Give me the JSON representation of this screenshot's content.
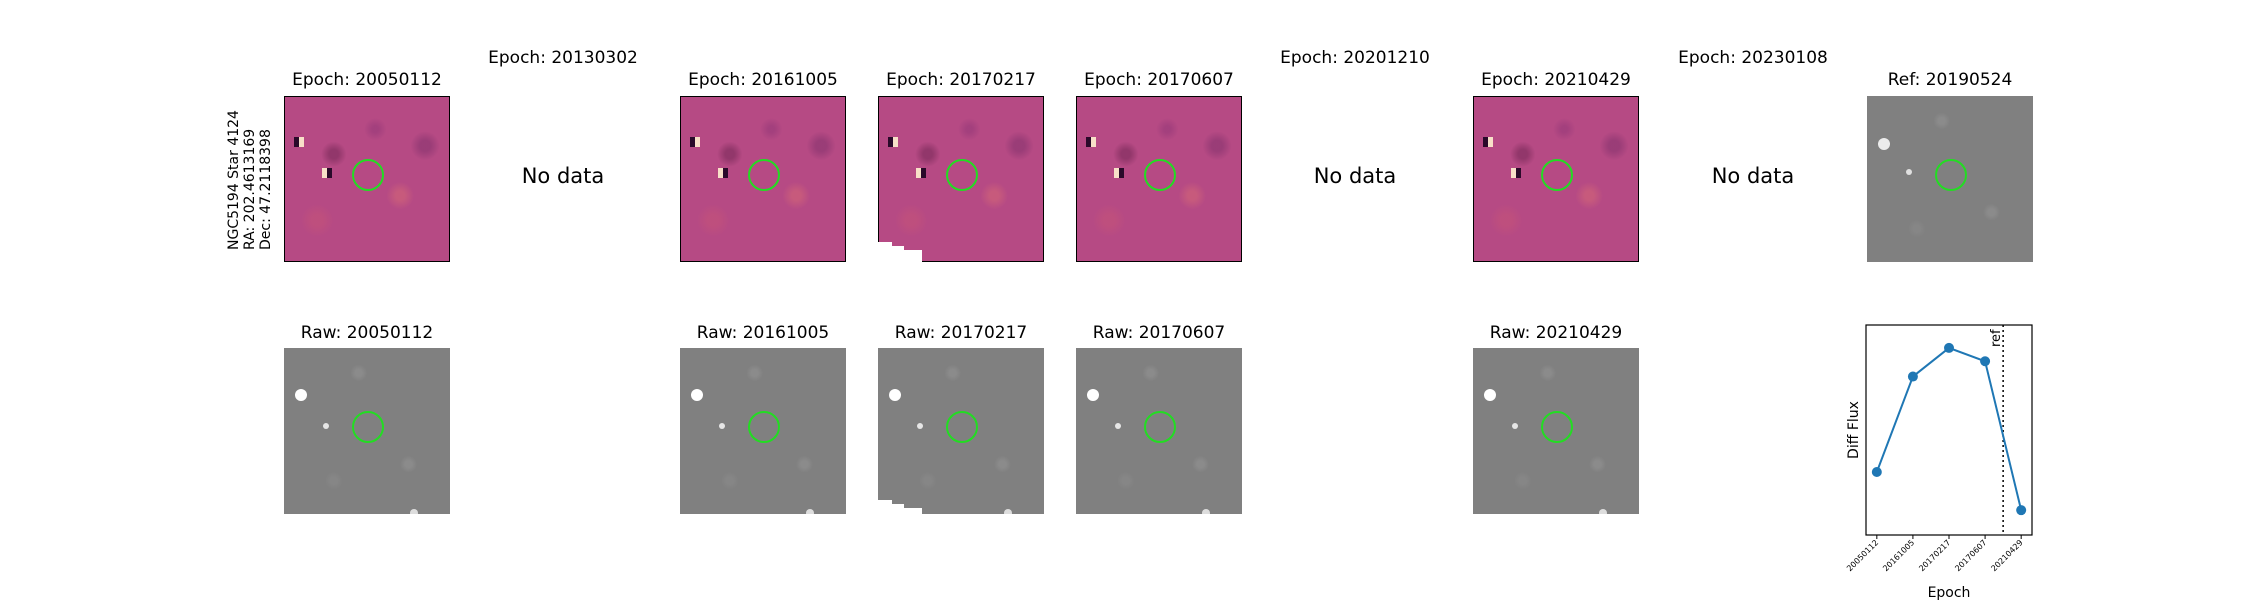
{
  "row_label": [
    "NGC5194 Star 4124",
    "RA: 202.4613169",
    "Dec: 47.2118398"
  ],
  "epochs": [
    {
      "epoch_title": "Epoch: 20050112",
      "raw_title": "Raw: 20050112",
      "has_data": true
    },
    {
      "epoch_title": "Epoch: 20130302",
      "raw_title": "",
      "has_data": false,
      "nodata_text": "No data"
    },
    {
      "epoch_title": "Epoch: 20161005",
      "raw_title": "Raw: 20161005",
      "has_data": true
    },
    {
      "epoch_title": "Epoch: 20170217",
      "raw_title": "Raw: 20170217",
      "has_data": true
    },
    {
      "epoch_title": "Epoch: 20170607",
      "raw_title": "Raw: 20170607",
      "has_data": true
    },
    {
      "epoch_title": "Epoch: 20201210",
      "raw_title": "",
      "has_data": false,
      "nodata_text": "No data"
    },
    {
      "epoch_title": "Epoch: 20210429",
      "raw_title": "Raw: 20210429",
      "has_data": true
    },
    {
      "epoch_title": "Epoch: 20230108",
      "raw_title": "",
      "has_data": false,
      "nodata_text": "No data"
    }
  ],
  "reference": {
    "title": "Ref: 20190524"
  },
  "colors": {
    "aperture": "#22dd22",
    "diff_background": "#b64a84",
    "raw_background": "#808080",
    "line": "#1f77b4"
  },
  "chart_data": {
    "type": "line",
    "xlabel": "Epoch",
    "ylabel": "Diff Flux",
    "categories": [
      "20050112",
      "20161005",
      "20170217",
      "20170607",
      "20210429"
    ],
    "values": [
      0.33,
      0.83,
      0.98,
      0.91,
      0.13
    ],
    "ylim": [
      0.0,
      1.1
    ],
    "yticks_visible": false,
    "reference_line": {
      "position_between": [
        "20170607",
        "20210429"
      ],
      "fraction": 0.5,
      "label": "ref",
      "style": "dotted"
    }
  }
}
